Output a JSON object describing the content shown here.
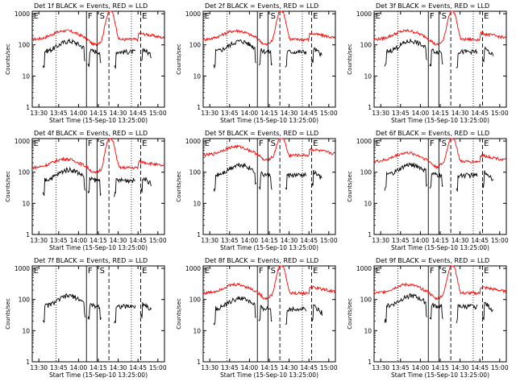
{
  "figure": {
    "xlabel": "Start Time (15-Sep-10 13:25:00)",
    "ylabel": "Counts/sec",
    "x_tick_labels": [
      "13:30",
      "13:45",
      "14:00",
      "14:15",
      "14:30",
      "14:45",
      "15:00"
    ],
    "y_tick_labels": [
      "1",
      "10",
      "100",
      "1000"
    ],
    "attenuator_marks": [
      "E",
      "F",
      "S",
      "E"
    ],
    "colors": {
      "events": "#000000",
      "lld": "#ff0000",
      "axes": "#000000",
      "background": "#ffffff"
    }
  },
  "chart_data": [
    {
      "type": "line",
      "title": "Det 1f BLACK = Events, RED = LLD",
      "lld_mean": 150,
      "evt_mean": 60
    },
    {
      "type": "line",
      "title": "Det 2f BLACK = Events, RED = LLD",
      "lld_mean": 150,
      "evt_mean": 60
    },
    {
      "type": "line",
      "title": "Det 3f BLACK = Events, RED = LLD",
      "lld_mean": 150,
      "evt_mean": 60
    },
    {
      "type": "line",
      "title": "Det 4f BLACK = Events, RED = LLD",
      "lld_mean": 140,
      "evt_mean": 55
    },
    {
      "type": "line",
      "title": "Det 5f BLACK = Events, RED = LLD",
      "lld_mean": 350,
      "evt_mean": 80
    },
    {
      "type": "line",
      "title": "Det 6f BLACK = Events, RED = LLD",
      "lld_mean": 220,
      "evt_mean": 80
    },
    {
      "type": "line",
      "title": "Det 7f BLACK = Events, RED = LLD",
      "lld_mean": null,
      "evt_mean": 60
    },
    {
      "type": "line",
      "title": "Det 8f BLACK = Events, RED = LLD",
      "lld_mean": 160,
      "evt_mean": 50
    },
    {
      "type": "line",
      "title": "Det 9f BLACK = Events, RED = LLD",
      "lld_mean": 160,
      "evt_mean": 60
    }
  ]
}
